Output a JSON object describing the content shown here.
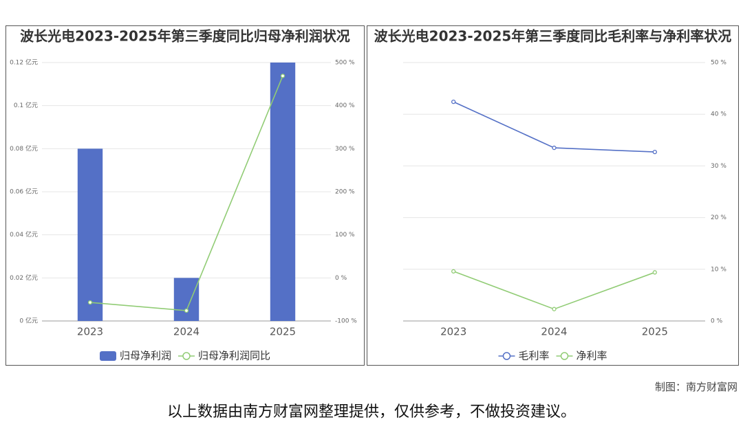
{
  "chart_data": [
    {
      "type": "bar",
      "title": "波长光电2023-2025年第三季度同比归母净利润状况",
      "categories": [
        "2023",
        "2024",
        "2025"
      ],
      "series": [
        {
          "name": "归母净利润",
          "type": "bar",
          "color": "#5470c6",
          "values": [
            0.08,
            0.02,
            0.12
          ]
        },
        {
          "name": "归母净利润同比",
          "type": "line",
          "color": "#91cc75",
          "axis": "y2",
          "values": [
            -57,
            -76,
            469
          ]
        }
      ],
      "ylim": [
        0,
        0.12
      ],
      "yticks": [
        {
          "value": 0,
          "label": "0 亿元"
        },
        {
          "value": 0.02,
          "label": "0.02 亿元"
        },
        {
          "value": 0.04,
          "label": "0.04 亿元"
        },
        {
          "value": 0.06,
          "label": "0.06 亿元"
        },
        {
          "value": 0.08,
          "label": "0.08 亿元"
        },
        {
          "value": 0.1,
          "label": "0.1 亿元"
        },
        {
          "value": 0.12,
          "label": "0.12 亿元"
        }
      ],
      "y2lim": [
        -100,
        500
      ],
      "y2ticks": [
        {
          "value": -100,
          "label": "-100 %"
        },
        {
          "value": 0,
          "label": "0 %"
        },
        {
          "value": 100,
          "label": "100 %"
        },
        {
          "value": 200,
          "label": "200 %"
        },
        {
          "value": 300,
          "label": "300 %"
        },
        {
          "value": 400,
          "label": "400 %"
        },
        {
          "value": 500,
          "label": "500 %"
        }
      ],
      "grid": true,
      "legend": "bottom"
    },
    {
      "type": "line",
      "title": "波长光电2023-2025年第三季度同比毛利率与净利率状况",
      "categories": [
        "2023",
        "2024",
        "2025"
      ],
      "series": [
        {
          "name": "毛利率",
          "color": "#5470c6",
          "values": [
            42.4,
            33.5,
            32.7
          ]
        },
        {
          "name": "净利率",
          "color": "#91cc75",
          "values": [
            9.6,
            2.3,
            9.4
          ]
        }
      ],
      "ylim": [
        0,
        50
      ],
      "yticks": [
        {
          "value": 0,
          "label": "0 %"
        },
        {
          "value": 10,
          "label": "10 %"
        },
        {
          "value": 20,
          "label": "20 %"
        },
        {
          "value": 30,
          "label": "30 %"
        },
        {
          "value": 40,
          "label": "40 %"
        },
        {
          "value": 50,
          "label": "50 %"
        }
      ],
      "y_axis_side": "right",
      "grid": true,
      "legend": "bottom"
    }
  ],
  "footer": {
    "credit": "制图：南方财富网",
    "disclaimer": "以上数据由南方财富网整理提供，仅供参考，不做投资建议。"
  }
}
